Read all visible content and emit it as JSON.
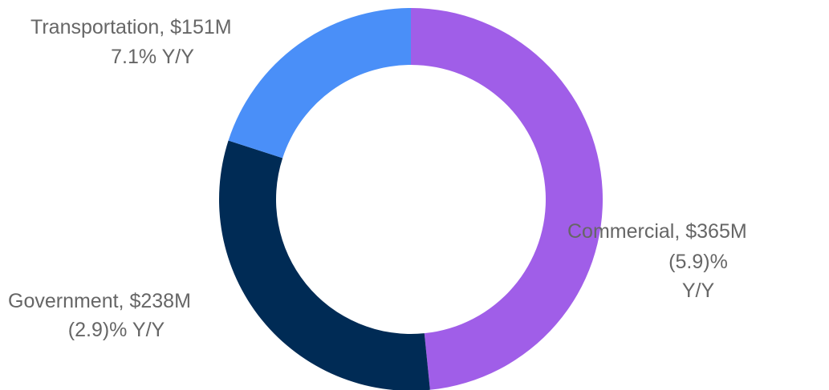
{
  "chart_data": {
    "type": "donut",
    "values": [
      365,
      238,
      151
    ],
    "value_labels": [
      "Commercial, $365M",
      "Government, $238M",
      "Transportation, $151M"
    ],
    "changes": [
      "(5.9)% Y/Y",
      "(2.9)% Y/Y",
      "7.1% Y/Y"
    ],
    "colors": [
      "#a05ee8",
      "#002b55",
      "#4a8ff8"
    ]
  }
}
